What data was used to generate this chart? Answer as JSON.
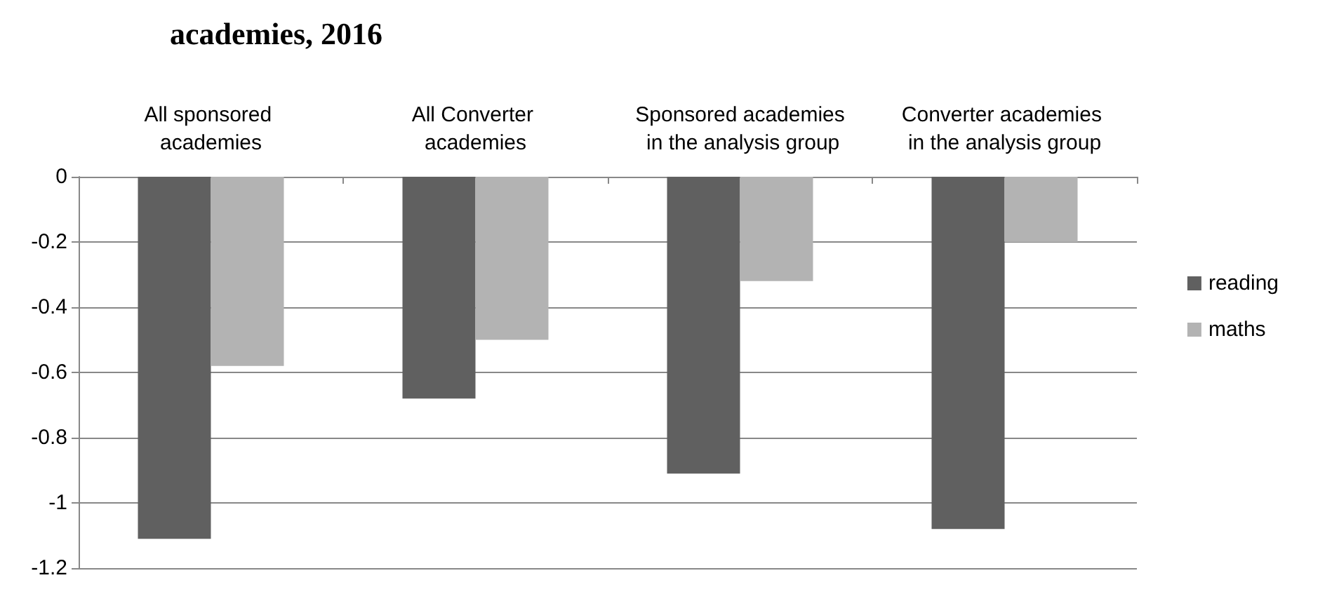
{
  "chart_data": {
    "type": "bar",
    "title": "academies, 2016",
    "categories": [
      "All sponsored academies",
      "All Converter academies",
      "Sponsored academies in the analysis group",
      "Converter academies in the analysis group"
    ],
    "series": [
      {
        "name": "reading",
        "color": "#606060",
        "values": [
          -1.11,
          -0.68,
          -0.91,
          -1.08
        ]
      },
      {
        "name": "maths",
        "color": "#b3b3b3",
        "values": [
          -0.58,
          -0.5,
          -0.32,
          -0.2
        ]
      }
    ],
    "ylim": [
      -1.2,
      0
    ],
    "yticks": [
      -1.2,
      -1,
      -0.8,
      -0.6,
      -0.4,
      -0.2,
      0
    ],
    "grid": "y",
    "legend": "right"
  }
}
